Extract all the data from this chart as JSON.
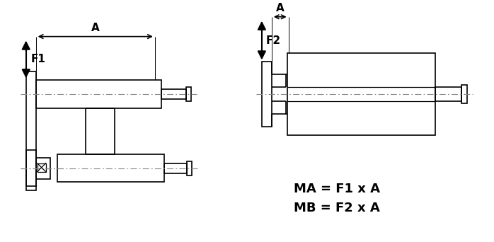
{
  "bg_color": "#ffffff",
  "line_color": "#000000",
  "dash_color": "#888888",
  "figsize": [
    6.98,
    3.42
  ],
  "dpi": 100,
  "formula_line1": "MA = F1 x A",
  "formula_line2": "MB = F2 x A",
  "label_A": "A",
  "label_F1": "F1",
  "label_F2": "F2"
}
